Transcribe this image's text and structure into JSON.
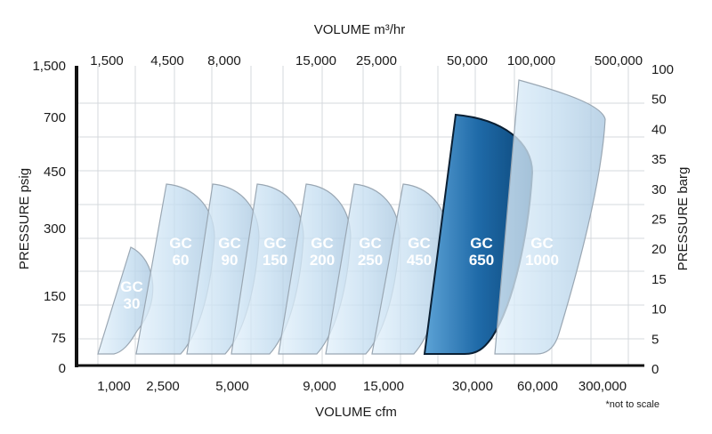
{
  "chart_data": {
    "type": "area",
    "title": "",
    "top_axis_title": "VOLUME m³/hr",
    "bottom_axis_title": "VOLUME cfm",
    "left_axis_title": "PRESSURE psig",
    "right_axis_title": "PRESSURE barg",
    "footnote": "*not to scale",
    "grid": true,
    "top_ticks": [
      "1,500",
      "4,500",
      "8,000",
      "15,000",
      "25,000",
      "50,000",
      "100,000",
      "500,000"
    ],
    "bottom_ticks": [
      "1,000",
      "2,500",
      "5,000",
      "9,000",
      "15,000",
      "30,000",
      "60,000",
      "300,000"
    ],
    "left_ticks": [
      "0",
      "75",
      "150",
      "300",
      "450",
      "700",
      "1,500"
    ],
    "right_ticks": [
      "0",
      "5",
      "10",
      "15",
      "20",
      "25",
      "30",
      "35",
      "40",
      "50",
      "100"
    ],
    "series": [
      {
        "name": "GC 30",
        "label_lines": [
          "GC",
          "30"
        ],
        "max_pressure_barg": 18,
        "cfm_range": [
          "",
          "2,500"
        ]
      },
      {
        "name": "GC 60",
        "label_lines": [
          "GC",
          "60"
        ],
        "max_pressure_barg": 28,
        "cfm_range": [
          "2,500",
          "5,000"
        ]
      },
      {
        "name": "GC 90",
        "label_lines": [
          "GC",
          "90"
        ],
        "max_pressure_barg": 28,
        "cfm_range": [
          "2,500",
          "5,000"
        ]
      },
      {
        "name": "GC 150",
        "label_lines": [
          "GC",
          "150"
        ],
        "max_pressure_barg": 28,
        "cfm_range": [
          "5,000",
          "9,000"
        ]
      },
      {
        "name": "GC 200",
        "label_lines": [
          "GC",
          "200"
        ],
        "max_pressure_barg": 28,
        "cfm_range": [
          "5,000",
          "15,000"
        ]
      },
      {
        "name": "GC 250",
        "label_lines": [
          "GC",
          "250"
        ],
        "max_pressure_barg": 28,
        "cfm_range": [
          "9,000",
          "15,000"
        ]
      },
      {
        "name": "GC 450",
        "label_lines": [
          "GC",
          "450"
        ],
        "max_pressure_barg": 28,
        "cfm_range": [
          "15,000",
          "30,000"
        ]
      },
      {
        "name": "GC 650",
        "label_lines": [
          "GC",
          "650"
        ],
        "max_pressure_barg": 38,
        "cfm_range": [
          "15,000",
          "60,000"
        ],
        "highlighted": true
      },
      {
        "name": "GC 1000",
        "label_lines": [
          "GC",
          "1000"
        ],
        "max_pressure_barg": 48,
        "cfm_range": [
          "60,000",
          "300,000"
        ]
      }
    ]
  },
  "colors": {
    "envelope_fill": "#c6def0",
    "envelope_stroke": "#9aa7b3",
    "highlight_light": "#5da3d6",
    "highlight_dark": "#0b4678",
    "grid": "#d4d8dc",
    "axis": "#111111"
  }
}
